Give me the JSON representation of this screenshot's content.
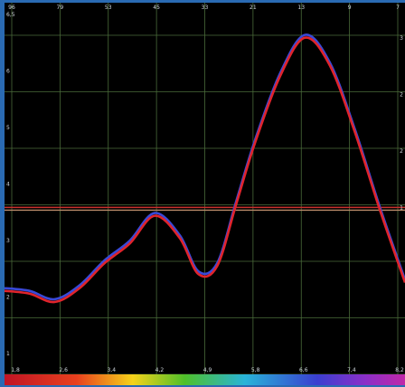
{
  "chart_data": {
    "type": "line",
    "top_ticks": [
      "96",
      "79",
      "53",
      "45",
      "33",
      "21",
      "13",
      "9",
      "7"
    ],
    "left_ticks": [
      "6,5",
      "6",
      "5",
      "4",
      "3",
      "2",
      "1"
    ],
    "right_ticks": [
      "3",
      "2",
      "2",
      "1"
    ],
    "bottom_ticks": [
      "1,8",
      "2,6",
      "3,4",
      "4,2",
      "4,9",
      "5,8",
      "6,6",
      "7,4",
      "8,2"
    ],
    "xlim": [
      1.8,
      8.2
    ],
    "ylim": [
      0,
      6.5
    ],
    "grid": true,
    "series": [
      {
        "color": "#3a49d8",
        "x": [
          1.8,
          2.2,
          2.6,
          3.0,
          3.4,
          3.8,
          4.2,
          4.6,
          4.9,
          5.2,
          5.5,
          5.8,
          6.2,
          6.6,
          7.0,
          7.4,
          7.8,
          8.2
        ],
        "y": [
          1.55,
          1.5,
          1.35,
          1.6,
          2.05,
          2.4,
          2.9,
          2.5,
          1.85,
          2.0,
          3.1,
          4.2,
          5.4,
          6.1,
          5.6,
          4.4,
          3.0,
          1.7
        ]
      },
      {
        "color": "#e0242c",
        "x": [
          1.8,
          2.2,
          2.6,
          3.0,
          3.4,
          3.8,
          4.2,
          4.6,
          4.9,
          5.2,
          5.5,
          5.8,
          6.2,
          6.6,
          7.0,
          7.4,
          7.8,
          8.2
        ],
        "y": [
          1.5,
          1.45,
          1.3,
          1.55,
          2.0,
          2.35,
          2.85,
          2.45,
          1.8,
          1.95,
          3.05,
          4.15,
          5.35,
          6.05,
          5.55,
          4.35,
          2.95,
          1.65
        ]
      }
    ],
    "reference_lines": [
      {
        "y": 3.0,
        "color": "#c8322e"
      },
      {
        "y": 2.95,
        "color": "#b98a6a"
      }
    ],
    "colorbar": true
  }
}
